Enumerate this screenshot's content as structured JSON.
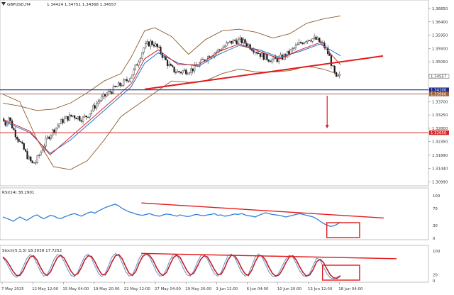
{
  "chart_data": [
    {
      "type": "candlestick",
      "title": "GBPUSD,H4",
      "ohlc_readout": "1.34424 1.34751 1.34368 1.34557",
      "ylim": [
        1.3095,
        1.3685
      ],
      "y_ticks": [
        1.3685,
        1.364,
        1.3595,
        1.355,
        1.3505,
        1.346,
        1.337,
        1.3325,
        1.328,
        1.3235,
        1.3189,
        1.3144,
        1.3099
      ],
      "y_tick_labels": [
        "1.36850",
        "1.36400",
        "1.35950",
        "1.35500",
        "1.35050",
        "1.34600",
        "1.33700",
        "1.33250",
        "1.32800",
        "1.32350",
        "1.31890",
        "1.31440",
        "1.30990"
      ],
      "x_tick_labels": [
        "7 May 2025",
        "12 May 12:00",
        "15 May 04:00",
        "19 May 20:00",
        "22 May 12:00",
        "27 May 04:00",
        "29 May 20:00",
        "3 Jun 12:00",
        "6 Jun 04:00",
        "10 Jun 20:00",
        "13 Jun 12:00",
        "18 Jun 04:00"
      ],
      "close_path": [
        1.3312,
        1.3296,
        1.3318,
        1.3286,
        1.326,
        1.3242,
        1.3218,
        1.3196,
        1.3175,
        1.316,
        1.3166,
        1.3189,
        1.3213,
        1.3236,
        1.3255,
        1.327,
        1.3283,
        1.3296,
        1.3306,
        1.3313,
        1.3318,
        1.3323,
        1.3319,
        1.3315,
        1.3313,
        1.3321,
        1.3333,
        1.3348,
        1.3364,
        1.3376,
        1.3385,
        1.3394,
        1.3404,
        1.3412,
        1.342,
        1.3427,
        1.3434,
        1.3442,
        1.3455,
        1.3474,
        1.3499,
        1.3527,
        1.3552,
        1.3563,
        1.357,
        1.3565,
        1.3553,
        1.3537,
        1.3517,
        1.3499,
        1.3484,
        1.3475,
        1.347,
        1.3471,
        1.3474,
        1.3475,
        1.3478,
        1.3484,
        1.3493,
        1.3503,
        1.3513,
        1.3522,
        1.353,
        1.3536,
        1.3542,
        1.355,
        1.3558,
        1.3566,
        1.3572,
        1.3576,
        1.3577,
        1.3574,
        1.3569,
        1.3561,
        1.3552,
        1.3543,
        1.3535,
        1.3526,
        1.352,
        1.3515,
        1.3512,
        1.3512,
        1.3515,
        1.352,
        1.3527,
        1.3535,
        1.3545,
        1.3555,
        1.3565,
        1.3573,
        1.358,
        1.3583,
        1.3583,
        1.358,
        1.3573,
        1.3562,
        1.3547,
        1.3521,
        1.348,
        1.3446,
        1.3456
      ],
      "series": [
        {
          "name": "",
          "kind": "upper-band",
          "points": [
            [
              0,
              1.3365
            ],
            [
              5,
              1.3355
            ],
            [
              10,
              1.334
            ],
            [
              15,
              1.3345
            ],
            [
              20,
              1.3365
            ],
            [
              25,
              1.34
            ],
            [
              30,
              1.344
            ],
            [
              35,
              1.3465
            ],
            [
              38,
              1.352
            ],
            [
              42,
              1.361
            ],
            [
              45,
              1.362
            ],
            [
              50,
              1.359
            ],
            [
              55,
              1.353
            ],
            [
              60,
              1.358
            ],
            [
              65,
              1.361
            ],
            [
              70,
              1.3615
            ],
            [
              75,
              1.3605
            ],
            [
              80,
              1.3585
            ],
            [
              85,
              1.36
            ],
            [
              90,
              1.3635
            ],
            [
              95,
              1.365
            ],
            [
              100,
              1.366
            ]
          ]
        },
        {
          "name": "",
          "kind": "lower-band",
          "points": [
            [
              0,
              1.3395
            ],
            [
              5,
              1.337
            ],
            [
              10,
              1.3245
            ],
            [
              15,
              1.315
            ],
            [
              20,
              1.314
            ],
            [
              25,
              1.317
            ],
            [
              30,
              1.324
            ],
            [
              35,
              1.332
            ],
            [
              40,
              1.336
            ],
            [
              45,
              1.34
            ],
            [
              50,
              1.344
            ],
            [
              55,
              1.3435
            ],
            [
              60,
              1.344
            ],
            [
              65,
              1.3465
            ],
            [
              70,
              1.348
            ],
            [
              75,
              1.347
            ],
            [
              80,
              1.347
            ],
            [
              85,
              1.3475
            ],
            [
              90,
              1.349
            ],
            [
              95,
              1.348
            ],
            [
              100,
              1.346
            ]
          ]
        },
        {
          "name": "",
          "kind": "ma-blue",
          "points": [
            [
              0,
              1.3305
            ],
            [
              8,
              1.3265
            ],
            [
              14,
              1.3195
            ],
            [
              20,
              1.324
            ],
            [
              26,
              1.33
            ],
            [
              32,
              1.336
            ],
            [
              38,
              1.342
            ],
            [
              42,
              1.35
            ],
            [
              46,
              1.3535
            ],
            [
              52,
              1.35
            ],
            [
              58,
              1.349
            ],
            [
              64,
              1.353
            ],
            [
              70,
              1.356
            ],
            [
              76,
              1.3545
            ],
            [
              82,
              1.352
            ],
            [
              88,
              1.354
            ],
            [
              94,
              1.3565
            ],
            [
              100,
              1.3525
            ]
          ]
        },
        {
          "name": "",
          "kind": "ma-red",
          "points": [
            [
              0,
              1.331
            ],
            [
              8,
              1.327
            ],
            [
              14,
              1.319
            ],
            [
              20,
              1.325
            ],
            [
              26,
              1.331
            ],
            [
              32,
              1.337
            ],
            [
              38,
              1.343
            ],
            [
              42,
              1.3515
            ],
            [
              46,
              1.3545
            ],
            [
              52,
              1.3495
            ],
            [
              58,
              1.3495
            ],
            [
              64,
              1.354
            ],
            [
              70,
              1.3565
            ],
            [
              76,
              1.354
            ],
            [
              82,
              1.3515
            ],
            [
              88,
              1.3545
            ],
            [
              94,
              1.357
            ],
            [
              100,
              1.3495
            ]
          ]
        }
      ],
      "levels": [
        {
          "value": 1.341,
          "label": "1.34100",
          "color": "#1f2a8a"
        },
        {
          "value": 1.3396,
          "label": "1.33960",
          "color": "#a0643a"
        },
        {
          "value": 1.3265,
          "label": "1.32650",
          "color": "#d62828"
        }
      ],
      "current_price": {
        "value": 1.34557,
        "label": "1.34557"
      },
      "trendline": {
        "from": [
          42,
          1.3412
        ],
        "to": [
          100,
          1.3515
        ],
        "color": "#e41a1c"
      },
      "arrow": {
        "at": 95,
        "from": 1.339,
        "to": 1.3282,
        "color": "#e41a1c"
      },
      "colors": {
        "up_candle": "#1a1a1a",
        "down_candle": "#1a1a1a",
        "band": "#8b5a2b",
        "ma_blue": "#1f77d4",
        "ma_red": "#d62828"
      }
    },
    {
      "type": "line",
      "title": "RSI(14) 38.2901",
      "ylim": [
        0,
        100
      ],
      "y_tick_labels": [
        "100",
        "70",
        "30",
        "0"
      ],
      "y_ticks": [
        100,
        70,
        30,
        0
      ],
      "series": [
        {
          "name": "",
          "values": [
            50,
            47,
            44,
            40,
            45,
            50,
            46,
            42,
            47,
            52,
            55,
            50,
            46,
            50,
            54,
            52,
            48,
            46,
            50,
            53,
            56,
            58,
            55,
            52,
            56,
            60,
            62,
            59,
            64,
            68,
            72,
            75,
            78,
            80,
            76,
            70,
            66,
            62,
            60,
            57,
            55,
            54,
            56,
            58,
            55,
            53,
            52,
            55,
            57,
            56,
            54,
            52,
            55,
            53,
            51,
            52,
            55,
            56,
            54,
            53,
            55,
            56,
            58,
            54,
            55,
            52,
            53,
            55,
            57,
            56,
            58,
            55,
            53,
            52,
            50,
            54,
            57,
            60,
            58,
            56,
            55,
            54,
            52,
            50,
            52,
            54,
            56,
            58,
            56,
            54,
            52,
            50,
            46,
            40,
            35,
            31,
            28,
            29,
            33,
            38
          ]
        }
      ],
      "trendline": {
        "from": [
          0.33,
          83
        ],
        "to": [
          0.97,
          51
        ],
        "color": "#e41a1c"
      },
      "highlight_box": {
        "x_from": 0.92,
        "x_to": 0.98,
        "color": "#e41a1c"
      }
    },
    {
      "type": "line",
      "title": "Stoch(5,3,3) 18.3038 17.7252",
      "ylim": [
        0,
        100
      ],
      "y_tick_labels": [
        "100",
        "20",
        "0"
      ],
      "y_ticks": [
        100,
        20,
        0
      ],
      "series": [
        {
          "name": "",
          "values": [
            78,
            62,
            40,
            20,
            12,
            22,
            48,
            75,
            88,
            80,
            58,
            32,
            16,
            20,
            44,
            72,
            88,
            84,
            64,
            38,
            18,
            14,
            30,
            58,
            82,
            90,
            76,
            50,
            26,
            14,
            24,
            52,
            80,
            92,
            84,
            60,
            32,
            16,
            20,
            46,
            76,
            92,
            92,
            80,
            56,
            30,
            16,
            18,
            40,
            70,
            88,
            86,
            66,
            40,
            20,
            16,
            34,
            62,
            84,
            88,
            72,
            46,
            24,
            16,
            28,
            58,
            84,
            90,
            78,
            52,
            28,
            16,
            22,
            50,
            80,
            90,
            80,
            56,
            30,
            16,
            14,
            28,
            52,
            74,
            86,
            80,
            58,
            34,
            18,
            14,
            26,
            52,
            76,
            70,
            46,
            24,
            10,
            6,
            12,
            18
          ]
        },
        {
          "name": "",
          "values": [
            80,
            70,
            52,
            32,
            18,
            18,
            34,
            60,
            80,
            84,
            70,
            46,
            26,
            18,
            30,
            56,
            78,
            86,
            76,
            54,
            32,
            18,
            24,
            44,
            70,
            84,
            82,
            64,
            40,
            22,
            20,
            38,
            64,
            84,
            88,
            74,
            48,
            26,
            18,
            32,
            60,
            82,
            90,
            86,
            70,
            46,
            26,
            18,
            28,
            54,
            78,
            86,
            78,
            56,
            34,
            20,
            26,
            48,
            72,
            84,
            80,
            60,
            38,
            22,
            22,
            42,
            70,
            86,
            84,
            66,
            42,
            24,
            18,
            36,
            64,
            84,
            84,
            70,
            46,
            26,
            16,
            20,
            38,
            62,
            80,
            84,
            70,
            48,
            28,
            16,
            20,
            38,
            64,
            72,
            62,
            40,
            20,
            10,
            8,
            17
          ]
        }
      ],
      "trendline": {
        "from": [
          0.33,
          92
        ],
        "to": [
          1.0,
          79
        ],
        "color": "#e41a1c"
      },
      "highlight_box": {
        "x_from": 0.91,
        "x_to": 0.98,
        "color": "#e41a1c"
      }
    }
  ]
}
